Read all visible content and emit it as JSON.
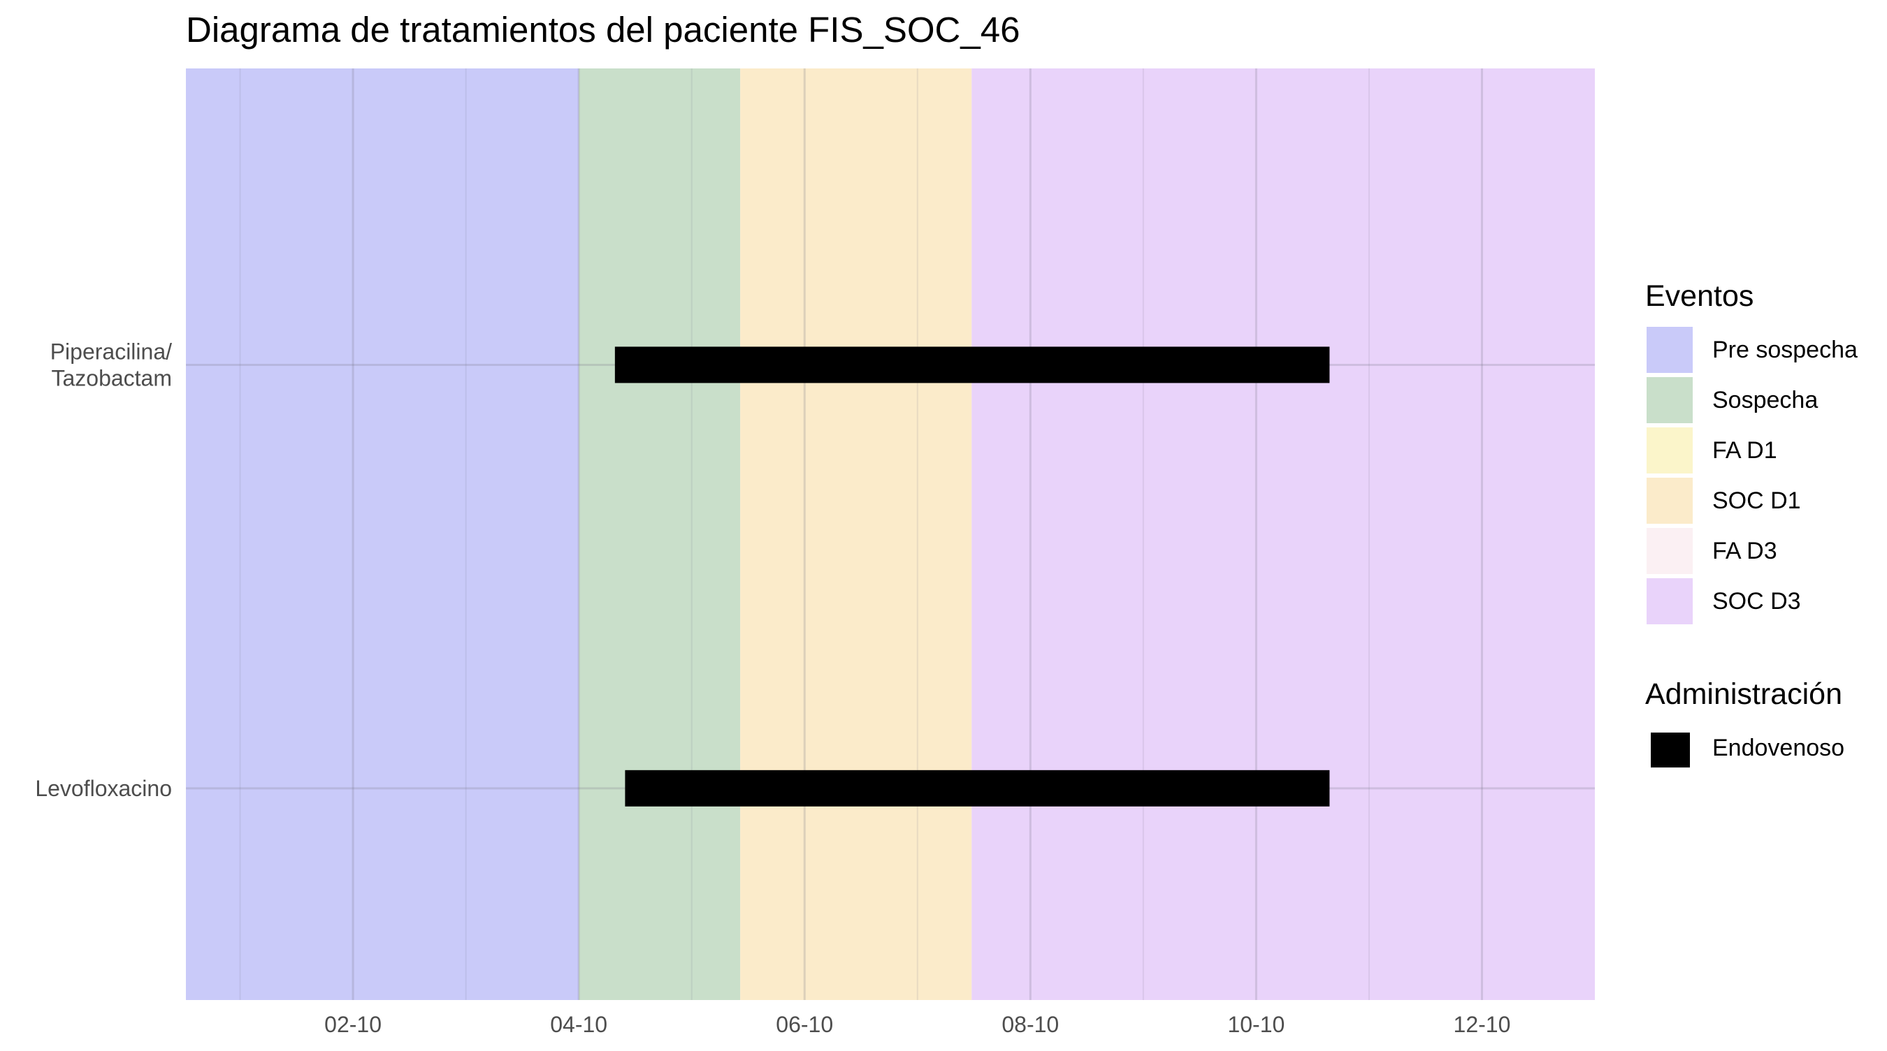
{
  "chart_data": {
    "type": "gantt",
    "title": "Diagrama de tratamientos del paciente FIS_SOC_46",
    "xlabel": "",
    "ylabel": "",
    "x_axis_type": "date",
    "x_tick_labels": [
      "02-10",
      "04-10",
      "06-10",
      "08-10",
      "10-10",
      "12-10"
    ],
    "x_tick_values": [
      2,
      4,
      6,
      8,
      10,
      12
    ],
    "x_minor_values": [
      1,
      3,
      5,
      7,
      9,
      11
    ],
    "xlim": [
      0.52,
      13.0
    ],
    "grid": true,
    "categories": [
      "Piperacilina/\nTazobactam",
      "Levofloxacino"
    ],
    "category_lines": [
      [
        "Piperacilina/",
        "Tazobactam"
      ],
      [
        "Levofloxacino"
      ]
    ],
    "event_bands": [
      {
        "name": "Pre sospecha",
        "start": 0.52,
        "end": 4.0,
        "color": "#c9caf9"
      },
      {
        "name": "Sospecha",
        "start": 4.0,
        "end": 5.43,
        "color": "#c9dfca"
      },
      {
        "name": "SOC D1",
        "start": 5.43,
        "end": 7.48,
        "color": "#fbebca"
      },
      {
        "name": "SOC D3",
        "start": 7.48,
        "end": 13.0,
        "color": "#e9d3fa"
      }
    ],
    "series": [
      {
        "name": "Endovenoso",
        "color": "#000000",
        "bars": [
          {
            "category": "Piperacilina/\nTazobactam",
            "start": 4.32,
            "end": 10.65
          },
          {
            "category": "Levofloxacino",
            "start": 4.41,
            "end": 10.65
          }
        ]
      }
    ],
    "legends": [
      {
        "title": "Eventos",
        "position": "right",
        "items": [
          {
            "label": "Pre sospecha",
            "color": "#c9caf9"
          },
          {
            "label": "Sospecha",
            "color": "#c9dfca"
          },
          {
            "label": "FA D1",
            "color": "#fbf5ca"
          },
          {
            "label": "SOC D1",
            "color": "#fbebca"
          },
          {
            "label": "FA D3",
            "color": "#fbf0f3"
          },
          {
            "label": "SOC D3",
            "color": "#e9d3fa"
          }
        ]
      },
      {
        "title": "Administración",
        "position": "right",
        "items": [
          {
            "label": "Endovenoso",
            "color": "#000000"
          }
        ]
      }
    ]
  }
}
